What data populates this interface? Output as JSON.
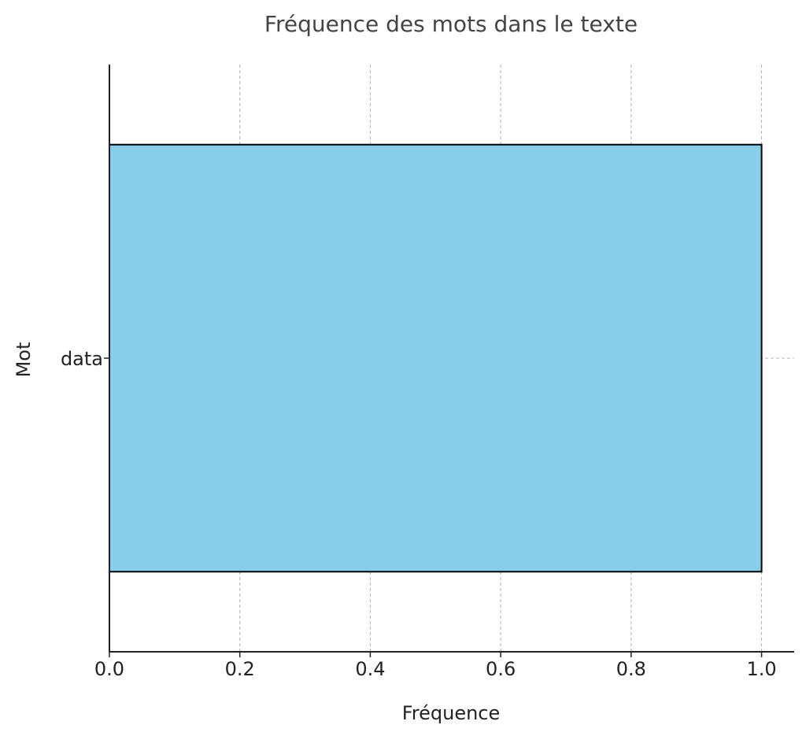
{
  "chart_data": {
    "type": "bar",
    "orientation": "horizontal",
    "title": "Fréquence des mots dans le texte",
    "xlabel": "Fréquence",
    "ylabel": "Mot",
    "categories": [
      "data"
    ],
    "values": [
      1
    ],
    "xlim": [
      0,
      1.05
    ],
    "xticks": [
      0.0,
      0.2,
      0.4,
      0.6,
      0.8,
      1.0
    ],
    "xtick_labels": [
      "0.0",
      "0.2",
      "0.4",
      "0.6",
      "0.8",
      "1.0"
    ],
    "grid": true,
    "bar_color": "#87CEEB",
    "bar_edge_color": "#000000"
  }
}
